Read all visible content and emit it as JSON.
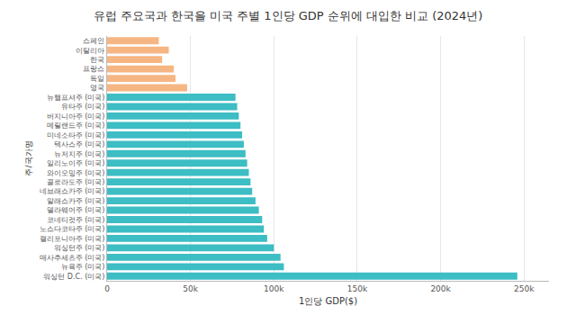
{
  "chart_data": {
    "type": "bar",
    "orientation": "horizontal",
    "title": "유럽 주요국과 한국을 미국 주별 1인당 GDP 순위에 대입한 비교 (2024년)",
    "x_label": "1인당 GDP($)",
    "y_label": "주/국가명",
    "categories": [
      "스페인",
      "이탈리아",
      "한국",
      "프랑스",
      "독일",
      "영국",
      "뉴햄프셔주 (미국)",
      "유타주 (미국)",
      "버지니아주 (미국)",
      "메릴랜드주 (미국)",
      "미네소타주 (미국)",
      "텍사스주 (미국)",
      "뉴저지주 (미국)",
      "일리노이주 (미국)",
      "와이오밍주 (미국)",
      "콜로라도주 (미국)",
      "네브래스카주 (미국)",
      "알래스카주 (미국)",
      "델라웨어주 (미국)",
      "코네티컷주 (미국)",
      "노스다코타주 (미국)",
      "캘리포니아주 (미국)",
      "워싱턴주 (미국)",
      "매사추세츠주 (미국)",
      "뉴욕주 (미국)",
      "워싱턴 D.C. (미국)"
    ],
    "values": [
      31000,
      37000,
      33000,
      40000,
      41000,
      48000,
      77000,
      78000,
      79000,
      80000,
      81000,
      82000,
      83000,
      84000,
      85000,
      86000,
      87000,
      89000,
      91000,
      93000,
      94000,
      96000,
      100000,
      104000,
      106000,
      246000
    ],
    "colors": [
      "#f6b683",
      "#f6b683",
      "#f6b683",
      "#f6b683",
      "#f6b683",
      "#f6b683",
      "#3dbdc4",
      "#3dbdc4",
      "#3dbdc4",
      "#3dbdc4",
      "#3dbdc4",
      "#3dbdc4",
      "#3dbdc4",
      "#3dbdc4",
      "#3dbdc4",
      "#3dbdc4",
      "#3dbdc4",
      "#3dbdc4",
      "#3dbdc4",
      "#3dbdc4",
      "#3dbdc4",
      "#3dbdc4",
      "#3dbdc4",
      "#3dbdc4",
      "#3dbdc4",
      "#3dbdc4"
    ],
    "xlim": [
      0,
      265000
    ],
    "xticks": [
      0,
      {
        "value": 50000,
        "label": "50k"
      },
      {
        "value": 100000,
        "label": "100k"
      },
      {
        "value": 150000,
        "label": "150k"
      },
      {
        "value": 200000,
        "label": "200k"
      },
      {
        "value": 250000,
        "label": "250k"
      }
    ],
    "grid": true
  }
}
